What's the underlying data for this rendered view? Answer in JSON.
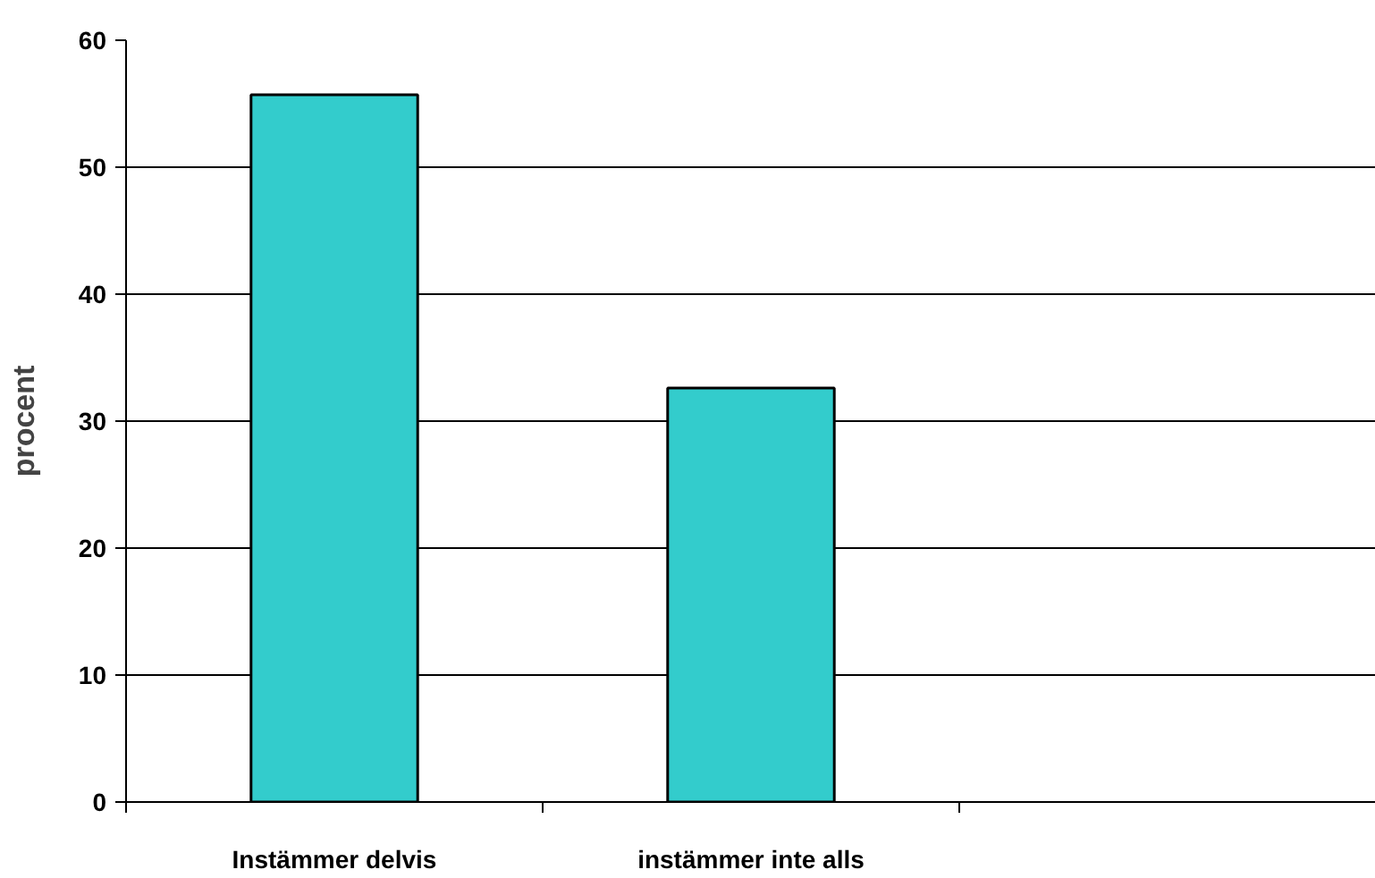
{
  "chart_data": {
    "type": "bar",
    "ylabel": "procent",
    "categories": [
      "Instämmer delvis",
      "instämmer inte alls",
      null
    ],
    "values": [
      55.7,
      32.6,
      null
    ],
    "color": "#33cccc",
    "ylim": [
      0,
      60
    ],
    "yticks": [
      0,
      10,
      20,
      30,
      40,
      50,
      60
    ],
    "grid": "y"
  }
}
